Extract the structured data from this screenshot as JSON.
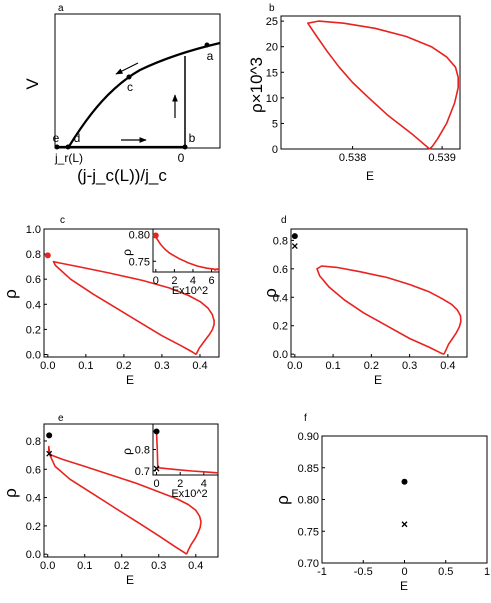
{
  "chart_data": [
    {
      "id": "a",
      "type": "line",
      "panel_label": "a",
      "xlabel": "(j-j_c(L))/j_c",
      "ylabel": "V",
      "tick_labels": [
        "j_r(L)",
        "0"
      ],
      "point_labels": [
        "e",
        "d",
        "c",
        "b",
        "a"
      ]
    },
    {
      "id": "b",
      "type": "line",
      "panel_label": "b",
      "xlabel": "E",
      "ylabel": "ρ×10^3",
      "xticks": [
        "0.538",
        "0.539"
      ],
      "yticks": [
        "0",
        "5",
        "10",
        "15",
        "20",
        "25"
      ],
      "xlim": [
        0.5372,
        0.5392
      ],
      "ylim": [
        0,
        26
      ],
      "series": [
        {
          "color": "#e8231f",
          "x": [
            0.53886,
            0.53889,
            0.53895,
            0.53905,
            0.53914,
            0.53918,
            0.53918,
            0.53915,
            0.53905,
            0.53888,
            0.5386,
            0.53825,
            0.5379,
            0.53762,
            0.5375,
            0.5376,
            0.53772,
            0.53785,
            0.538,
            0.53818,
            0.5384,
            0.53866,
            0.53886
          ],
          "y": [
            0,
            0.5,
            2,
            5,
            9,
            12,
            14,
            16,
            18,
            20,
            22,
            23.6,
            24.6,
            25.0,
            24.6,
            22.0,
            19.0,
            16.0,
            13.0,
            10.0,
            6.5,
            3.0,
            0
          ]
        }
      ]
    },
    {
      "id": "c",
      "type": "line",
      "panel_label": "c",
      "xlabel": "E",
      "ylabel": "ρ",
      "xticks": [
        "0.0",
        "0.1",
        "0.2",
        "0.3",
        "0.4"
      ],
      "yticks": [
        "0.0",
        "0.2",
        "0.4",
        "0.6",
        "0.8",
        "1.0"
      ],
      "xlim": [
        -0.01,
        0.45
      ],
      "ylim": [
        -0.02,
        1.0
      ],
      "series": [
        {
          "color": "#e8231f",
          "x": [
            0.39,
            0.393,
            0.398,
            0.405,
            0.415,
            0.425,
            0.433,
            0.437,
            0.437,
            0.432,
            0.421,
            0.401,
            0.37,
            0.32,
            0.25,
            0.16,
            0.08,
            0.03,
            0.015,
            0.02,
            0.06,
            0.12,
            0.18,
            0.24,
            0.3,
            0.35,
            0.38,
            0.39
          ],
          "y": [
            0,
            0.02,
            0.05,
            0.08,
            0.12,
            0.16,
            0.2,
            0.24,
            0.27,
            0.32,
            0.37,
            0.42,
            0.47,
            0.53,
            0.59,
            0.65,
            0.7,
            0.73,
            0.74,
            0.71,
            0.6,
            0.48,
            0.37,
            0.26,
            0.15,
            0.07,
            0.02,
            0
          ]
        }
      ],
      "points": [
        {
          "x": 0,
          "y": 0.79,
          "marker": "dot",
          "color": "#e8231f"
        }
      ],
      "inset": {
        "xlabel": "Ex10^2",
        "ylabel": "ρ",
        "xticks": [
          "0",
          "2",
          "4",
          "6"
        ],
        "yticks": [
          "0.75",
          "0.80"
        ],
        "xlim": [
          -0.3,
          6.8
        ],
        "ylim": [
          0.73,
          0.81
        ],
        "points": [
          {
            "x": 0,
            "y": 0.798,
            "marker": "dot",
            "color": "#e8231f"
          }
        ],
        "series": [
          {
            "color": "#e8231f",
            "x": [
              0,
              0.5,
              1,
              1.5,
              2,
              2.5,
              3,
              3.5,
              4,
              4.5,
              5,
              5.5,
              6,
              6.4,
              6.8
            ],
            "y": [
              0.795,
              0.782,
              0.772,
              0.765,
              0.76,
              0.755,
              0.751,
              0.747,
              0.744,
              0.741,
              0.739,
              0.737,
              0.736,
              0.735,
              0.7345
            ]
          },
          {
            "color": "#e8231f",
            "x": [
              6.3,
              6.5,
              6.8
            ],
            "y": [
              0.733,
              0.735,
              0.736
            ]
          }
        ]
      }
    },
    {
      "id": "d",
      "type": "line",
      "panel_label": "d",
      "xlabel": "E",
      "ylabel": "ρ",
      "xticks": [
        "0.0",
        "0.1",
        "0.2",
        "0.3",
        "0.4"
      ],
      "yticks": [
        "0.0",
        "0.2",
        "0.4",
        "0.6",
        "0.8"
      ],
      "xlim": [
        -0.01,
        0.45
      ],
      "ylim": [
        -0.02,
        0.88
      ],
      "series": [
        {
          "color": "#e8231f",
          "x": [
            0.39,
            0.395,
            0.402,
            0.412,
            0.422,
            0.43,
            0.434,
            0.433,
            0.425,
            0.41,
            0.385,
            0.35,
            0.3,
            0.24,
            0.17,
            0.11,
            0.07,
            0.058,
            0.065,
            0.09,
            0.13,
            0.18,
            0.24,
            0.3,
            0.35,
            0.38,
            0.39
          ],
          "y": [
            0,
            0.03,
            0.07,
            0.11,
            0.15,
            0.19,
            0.23,
            0.27,
            0.31,
            0.35,
            0.39,
            0.44,
            0.49,
            0.54,
            0.58,
            0.61,
            0.62,
            0.6,
            0.55,
            0.47,
            0.38,
            0.29,
            0.2,
            0.11,
            0.05,
            0.01,
            0
          ]
        }
      ],
      "points": [
        {
          "x": 0,
          "y": 0.83,
          "marker": "dot",
          "color": "#000"
        },
        {
          "x": 0,
          "y": 0.76,
          "marker": "x",
          "color": "#000"
        }
      ]
    },
    {
      "id": "e",
      "type": "line",
      "panel_label": "e",
      "xlabel": "E",
      "ylabel": "ρ",
      "xticks": [
        "0.0",
        "0.1",
        "0.2",
        "0.3",
        "0.4"
      ],
      "yticks": [
        "0.0",
        "0.2",
        "0.4",
        "0.6",
        "0.8"
      ],
      "xlim": [
        -0.01,
        0.46
      ],
      "ylim": [
        -0.02,
        0.92
      ],
      "series": [
        {
          "color": "#e8231f",
          "x": [
            0.375,
            0.38,
            0.388,
            0.398,
            0.406,
            0.412,
            0.414,
            0.41,
            0.4,
            0.38,
            0.35,
            0.3,
            0.24,
            0.17,
            0.1,
            0.04,
            0.01,
            0.003,
            0.003,
            0.006,
            0.02,
            0.06,
            0.12,
            0.18,
            0.24,
            0.3,
            0.34,
            0.37,
            0.375
          ],
          "y": [
            0,
            0.03,
            0.07,
            0.11,
            0.15,
            0.19,
            0.23,
            0.27,
            0.31,
            0.35,
            0.39,
            0.44,
            0.5,
            0.56,
            0.62,
            0.67,
            0.7,
            0.72,
            0.76,
            0.7,
            0.62,
            0.53,
            0.43,
            0.33,
            0.23,
            0.13,
            0.06,
            0.01,
            0
          ]
        }
      ],
      "points": [
        {
          "x": 0.004,
          "y": 0.84,
          "marker": "dot",
          "color": "#000"
        },
        {
          "x": 0.004,
          "y": 0.71,
          "marker": "x",
          "color": "#000"
        }
      ],
      "inset": {
        "xlabel": "Ex10^2",
        "ylabel": "ρ",
        "xticks": [
          "0",
          "2",
          "4"
        ],
        "yticks": [
          "0.7",
          "0.8"
        ],
        "xlim": [
          -0.3,
          5.2
        ],
        "ylim": [
          0.68,
          0.92
        ],
        "points": [
          {
            "x": 0,
            "y": 0.885,
            "marker": "dot",
            "color": "#000"
          },
          {
            "x": 0,
            "y": 0.71,
            "marker": "x",
            "color": "#000"
          }
        ],
        "series": [
          {
            "color": "#e8231f",
            "x": [
              0,
              0.03,
              0.06,
              0.08,
              0.1,
              0.12
            ],
            "y": [
              0.885,
              0.84,
              0.8,
              0.76,
              0.73,
              0.715
            ]
          },
          {
            "color": "#e8231f",
            "x": [
              0,
              0.5,
              1,
              2,
              3,
              4,
              5,
              5.2
            ],
            "y": [
              0.715,
              0.712,
              0.709,
              0.704,
              0.699,
              0.695,
              0.691,
              0.69
            ]
          }
        ]
      }
    },
    {
      "id": "f",
      "type": "scatter",
      "panel_label": "f",
      "xlabel": "E",
      "ylabel": "ρ",
      "xticks": [
        "-1",
        "-0.5",
        "0",
        "0.5",
        "1"
      ],
      "yticks": [
        "0.70",
        "0.75",
        "0.80",
        "0.85",
        "0.90"
      ],
      "xlim": [
        -1,
        1
      ],
      "ylim": [
        0.7,
        0.9
      ],
      "points": [
        {
          "x": 0,
          "y": 0.828,
          "marker": "dot",
          "color": "#000"
        },
        {
          "x": 0,
          "y": 0.761,
          "marker": "x",
          "color": "#000"
        }
      ]
    }
  ]
}
